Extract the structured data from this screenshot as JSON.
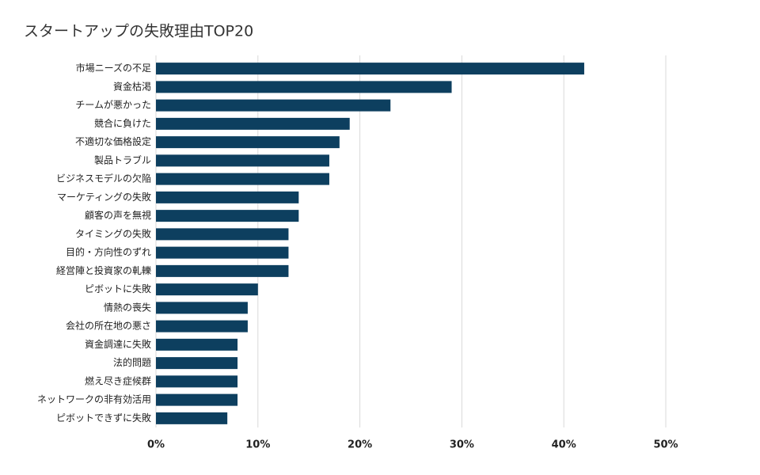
{
  "chart_data": {
    "type": "bar",
    "orientation": "horizontal",
    "title": "スタートアップの失敗理由TOP20",
    "categories": [
      "市場ニーズの不足",
      "資金枯渇",
      "チームが悪かった",
      "競合に負けた",
      "不適切な価格設定",
      "製品トラブル",
      "ビジネスモデルの欠陥",
      "マーケティングの失敗",
      "顧客の声を無視",
      "タイミングの失敗",
      "目的・方向性のずれ",
      "経営陣と投資家の軋轢",
      "ピボットに失敗",
      "情熱の喪失",
      "会社の所在地の悪さ",
      "資金調達に失敗",
      "法的問題",
      "燃え尽き症候群",
      "ネットワークの非有効活用",
      "ピボットできずに失敗"
    ],
    "values": [
      42,
      29,
      23,
      19,
      18,
      17,
      17,
      14,
      14,
      13,
      13,
      13,
      10,
      9,
      9,
      8,
      8,
      8,
      8,
      7
    ],
    "color": "#0d3f5f",
    "xlim": [
      0,
      50
    ],
    "xticks": [
      {
        "value": 0,
        "label": "0%"
      },
      {
        "value": 10,
        "label": "10%"
      },
      {
        "value": 20,
        "label": "20%"
      },
      {
        "value": 30,
        "label": "30%"
      },
      {
        "value": 40,
        "label": "40%"
      },
      {
        "value": 50,
        "label": "50%"
      }
    ],
    "grid": true
  }
}
